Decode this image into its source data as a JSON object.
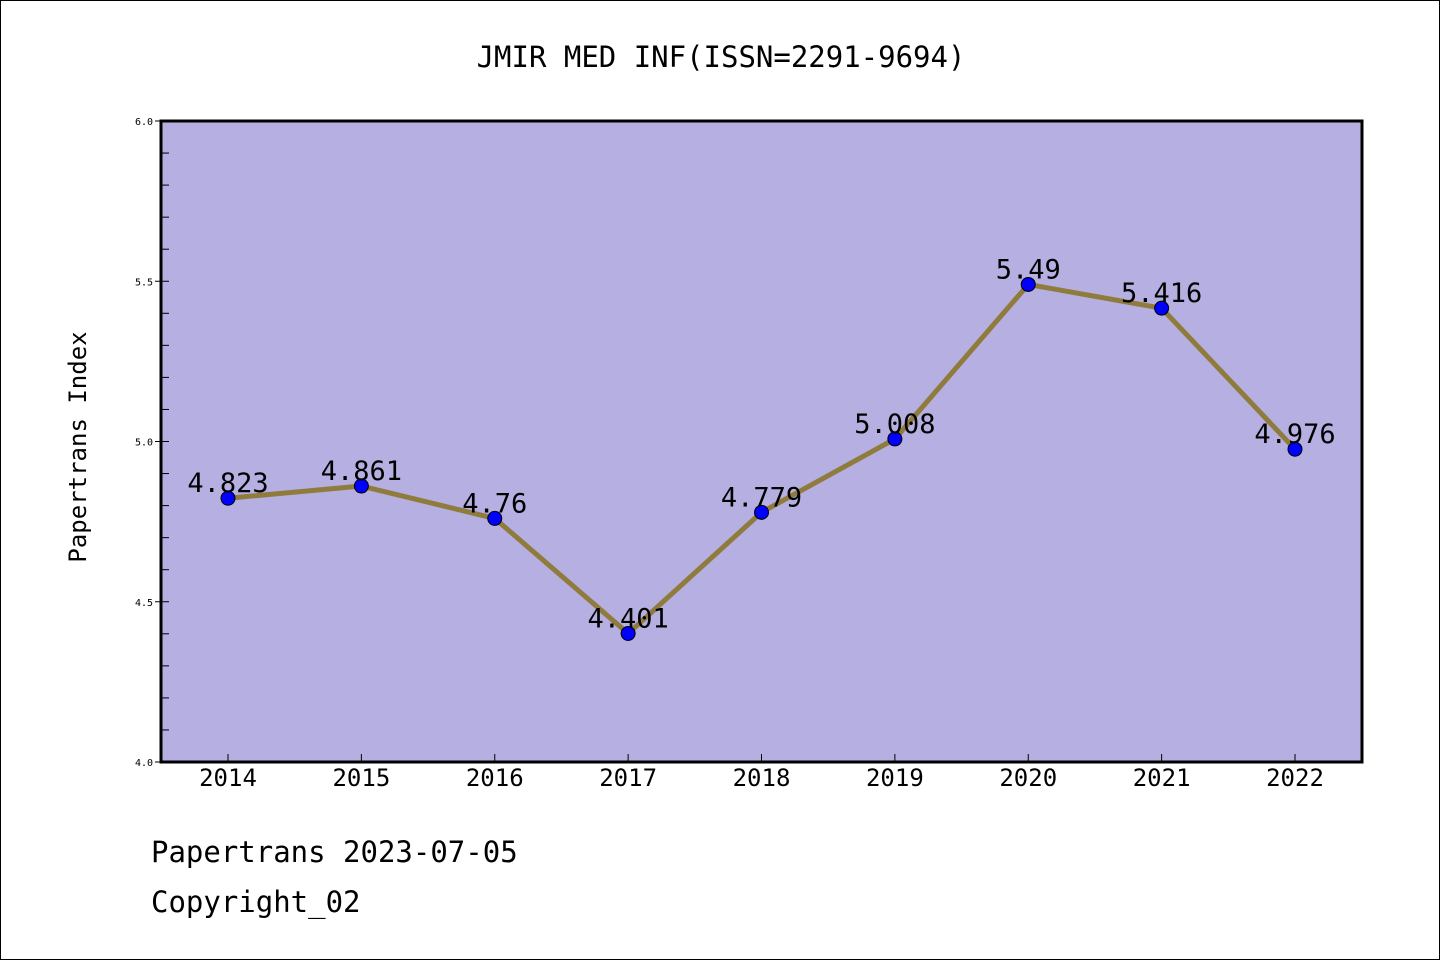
{
  "colors": {
    "plot_background": "#b5afe2",
    "line": "#8f7c3c",
    "marker": "#0000ff",
    "axis": "#000000"
  },
  "footer": {
    "source": "Papertrans 2023-07-05",
    "copyright": "Copyright_02"
  },
  "chart_data": {
    "type": "line",
    "title": "JMIR MED INF(ISSN=2291-9694)",
    "xlabel": "",
    "ylabel": "Papertrans Index",
    "categories": [
      "2014",
      "2015",
      "2016",
      "2017",
      "2018",
      "2019",
      "2020",
      "2021",
      "2022"
    ],
    "series": [
      {
        "values": [
          4.823,
          4.861,
          4.76,
          4.401,
          4.779,
          5.008,
          5.49,
          5.416,
          4.976
        ],
        "labels": [
          "4.823",
          "4.861",
          "4.76",
          "4.401",
          "4.779",
          "5.008",
          "5.49",
          "5.416",
          "4.976"
        ]
      }
    ],
    "ylim": [
      4.0,
      6.0
    ],
    "yticks": [
      "4.0",
      "4.5",
      "5.0",
      "5.5",
      "6.0"
    ],
    "grid": false,
    "legend": "none"
  }
}
